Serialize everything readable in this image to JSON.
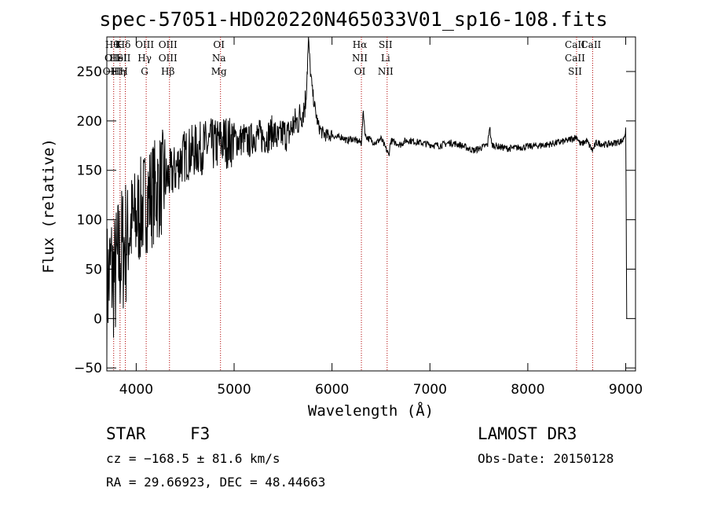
{
  "chart_data": {
    "type": "line",
    "title": "spec-57051-HD020220N465033V01_sp16-108.fits",
    "xlabel": "Wavelength (Å)",
    "ylabel": "Flux (relative)",
    "xlim": [
      3700,
      9100
    ],
    "ylim": [
      -53,
      285
    ],
    "xticks": [
      4000,
      5000,
      6000,
      7000,
      8000,
      9000
    ],
    "yticks": [
      -50,
      0,
      50,
      100,
      150,
      200,
      250
    ],
    "series": [
      {
        "name": "flux",
        "x": [
          3700,
          3740,
          3780,
          3820,
          3860,
          3900,
          3950,
          4000,
          4050,
          4100,
          4150,
          4200,
          4250,
          4300,
          4350,
          4400,
          4450,
          4500,
          4550,
          4600,
          4650,
          4700,
          4750,
          4800,
          4850,
          4900,
          4950,
          5000,
          5050,
          5100,
          5150,
          5200,
          5250,
          5300,
          5350,
          5400,
          5450,
          5500,
          5550,
          5600,
          5650,
          5700,
          5730,
          5760,
          5780,
          5800,
          5830,
          5860,
          5900,
          5950,
          6000,
          6050,
          6100,
          6150,
          6200,
          6250,
          6300,
          6320,
          6340,
          6400,
          6450,
          6500,
          6560,
          6580,
          6600,
          6650,
          6700,
          6750,
          6800,
          6900,
          7000,
          7100,
          7200,
          7300,
          7400,
          7450,
          7500,
          7550,
          7590,
          7610,
          7630,
          7700,
          7800,
          7900,
          8000,
          8100,
          8200,
          8300,
          8400,
          8500,
          8540,
          8600,
          8660,
          8700,
          8800,
          8900,
          8970,
          9000,
          9010
        ],
        "y": [
          30,
          50,
          40,
          60,
          70,
          80,
          95,
          100,
          110,
          120,
          125,
          130,
          135,
          140,
          145,
          150,
          160,
          165,
          168,
          170,
          172,
          174,
          176,
          175,
          178,
          180,
          178,
          182,
          180,
          182,
          178,
          185,
          185,
          183,
          185,
          190,
          180,
          188,
          185,
          195,
          200,
          210,
          220,
          282,
          250,
          230,
          210,
          195,
          188,
          185,
          186,
          183,
          184,
          180,
          182,
          180,
          178,
          210,
          185,
          180,
          178,
          182,
          170,
          165,
          180,
          178,
          176,
          180,
          180,
          178,
          176,
          175,
          178,
          176,
          172,
          170,
          172,
          174,
          176,
          195,
          176,
          174,
          172,
          173,
          174,
          175,
          176,
          178,
          180,
          184,
          176,
          180,
          170,
          178,
          176,
          178,
          180,
          190,
          0
        ]
      }
    ],
    "spectral_lines": [
      {
        "wavelength": 3770,
        "labels": [
          "Hθ",
          "OII",
          "OIII"
        ]
      },
      {
        "wavelength": 3835,
        "labels": [
          "K",
          "HeI",
          "Hη"
        ]
      },
      {
        "wavelength": 3889,
        "labels": [
          "Hδ",
          "SII",
          "H"
        ]
      },
      {
        "wavelength": 4102,
        "labels": [
          "OIII",
          "Hγ",
          "G"
        ]
      },
      {
        "wavelength": 4340,
        "labels": [
          "OIII",
          "OIII",
          "Hβ"
        ]
      },
      {
        "wavelength": 4861,
        "labels": [
          "OI",
          "Na",
          "Mg"
        ]
      },
      {
        "wavelength": 6300,
        "labels": [
          "Hα",
          "NII",
          "OI"
        ]
      },
      {
        "wavelength": 6563,
        "labels": [
          "SII",
          "Li",
          "NII"
        ]
      },
      {
        "wavelength": 8498,
        "labels": [
          "CaII",
          "CaII",
          "SII"
        ]
      },
      {
        "wavelength": 8662,
        "labels": [
          "CaII"
        ]
      }
    ]
  },
  "info": {
    "object_type": "STAR",
    "class": "F3",
    "survey": "LAMOST DR3",
    "cz": "cz = −168.5 ± 81.6 km/s",
    "obs_date": "Obs-Date: 20150128",
    "radec": "RA =  29.66923, DEC =  48.44663"
  }
}
